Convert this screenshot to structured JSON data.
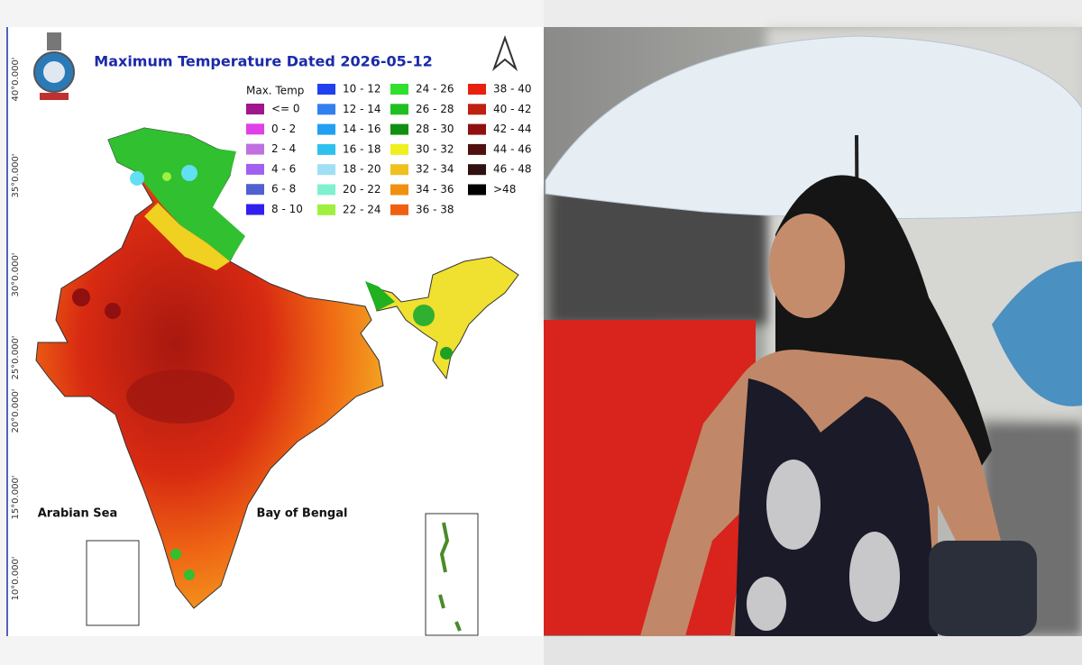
{
  "map": {
    "title": "Maximum Temperature Dated 2026-05-12",
    "latitude_labels": [
      "40°0.000'",
      "35°0.000'",
      "30°0.000'",
      "25°0.000'",
      "20°0.000'",
      "15°0.000'",
      "10°0.000'"
    ],
    "sea_labels": [
      "Arabian Sea",
      "Bay of Bengal"
    ],
    "legend": {
      "title": "Max. Temp",
      "items": [
        {
          "label": "<= 0",
          "color": "#a0168c"
        },
        {
          "label": "0 - 2",
          "color": "#e040e8"
        },
        {
          "label": "2 - 4",
          "color": "#c070e0"
        },
        {
          "label": "4 - 6",
          "color": "#a060f0"
        },
        {
          "label": "6 - 8",
          "color": "#5060d0"
        },
        {
          "label": "8 - 10",
          "color": "#3020f0"
        },
        {
          "label": "10 - 12",
          "color": "#2040f0"
        },
        {
          "label": "12 - 14",
          "color": "#3080f0"
        },
        {
          "label": "14 - 16",
          "color": "#20a0f0"
        },
        {
          "label": "16 - 18",
          "color": "#30c0f0"
        },
        {
          "label": "18 - 20",
          "color": "#a0e0f4"
        },
        {
          "label": "20 - 22",
          "color": "#80f0d0"
        },
        {
          "label": "22 - 24",
          "color": "#a0f040"
        },
        {
          "label": "24 - 26",
          "color": "#30e030"
        },
        {
          "label": "26 - 28",
          "color": "#20c020"
        },
        {
          "label": "28 - 30",
          "color": "#109010"
        },
        {
          "label": "30 - 32",
          "color": "#f0f020"
        },
        {
          "label": "32 - 34",
          "color": "#f0c020"
        },
        {
          "label": "34 - 36",
          "color": "#f09010"
        },
        {
          "label": "36 - 38",
          "color": "#f06010"
        },
        {
          "label": "38 - 40",
          "color": "#e82010"
        },
        {
          "label": "40 - 42",
          "color": "#c02010"
        },
        {
          "label": "42 - 44",
          "color": "#901010"
        },
        {
          "label": "44 - 46",
          "color": "#501010"
        },
        {
          "label": "46 - 48",
          "color": "#301010"
        },
        {
          "label": ">48",
          "color": "#000000"
        }
      ]
    }
  }
}
